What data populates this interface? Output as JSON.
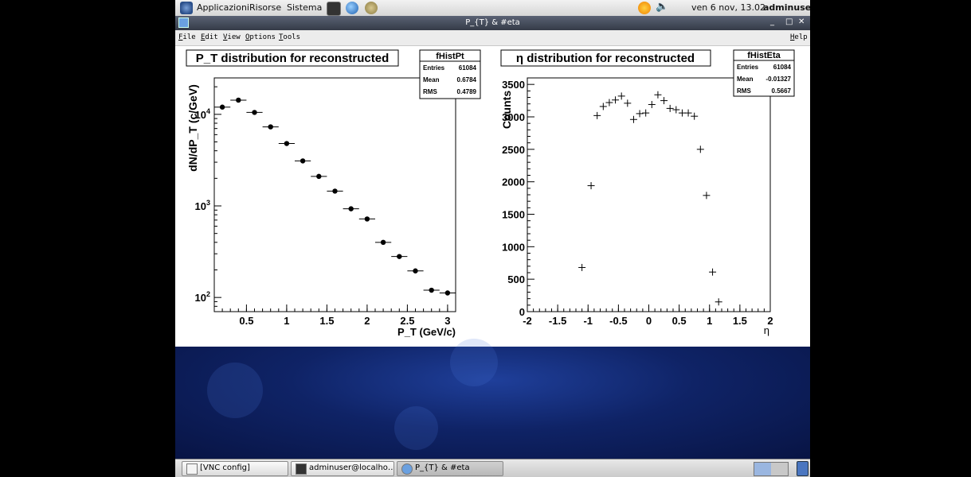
{
  "topbar": {
    "menus": [
      "Applicazioni",
      "Risorse",
      "Sistema"
    ],
    "clock": "ven  6 nov, 13.02",
    "user": "adminuser"
  },
  "window": {
    "title": "P_{T} & #eta",
    "buttons": {
      "minimize": "_",
      "maximize": "□",
      "close": "✕"
    }
  },
  "menubar": {
    "items": [
      "File",
      "Edit",
      "View",
      "Options",
      "Tools"
    ],
    "help": "Help"
  },
  "chart_data": [
    {
      "type": "scatter",
      "title": "P_T distribution for reconstructed",
      "xlabel": "P_T (GeV/c)",
      "ylabel": "dN/dP_T (c/GeV)",
      "yscale": "log",
      "xlim": [
        0.1,
        3.1
      ],
      "ylim": [
        70,
        25000
      ],
      "x_ticks": [
        "0.5",
        "1",
        "1.5",
        "2",
        "2.5",
        "3"
      ],
      "y_ticks": [
        "10^2",
        "10^3",
        "10^4"
      ],
      "x": [
        0.2,
        0.4,
        0.6,
        0.8,
        1.0,
        1.2,
        1.4,
        1.6,
        1.8,
        2.0,
        2.2,
        2.4,
        2.6,
        2.8,
        3.0
      ],
      "y": [
        12000,
        14300,
        10500,
        7300,
        4800,
        3100,
        2100,
        1450,
        930,
        720,
        400,
        280,
        195,
        120,
        112
      ],
      "marker": "filled-circle",
      "stats": {
        "name": "fHistPt",
        "rows": [
          {
            "label": "Entries",
            "value": "61084"
          },
          {
            "label": "Mean",
            "value": "0.6784"
          },
          {
            "label": "RMS",
            "value": "0.4789"
          }
        ]
      }
    },
    {
      "type": "scatter",
      "title": "η distribution for reconstructed",
      "xlabel": "η",
      "ylabel": "Counts",
      "xlim": [
        -2,
        2
      ],
      "ylim": [
        0,
        3600
      ],
      "x_ticks": [
        "-2",
        "-1.5",
        "-1",
        "-0.5",
        "0",
        "0.5",
        "1",
        "1.5",
        "2"
      ],
      "y_ticks": [
        "0",
        "500",
        "1000",
        "1500",
        "2000",
        "2500",
        "3000",
        "3500"
      ],
      "x": [
        -1.1,
        -0.95,
        -0.85,
        -0.75,
        -0.65,
        -0.55,
        -0.45,
        -0.35,
        -0.25,
        -0.15,
        -0.05,
        0.05,
        0.15,
        0.25,
        0.35,
        0.45,
        0.55,
        0.65,
        0.75,
        0.85,
        0.95,
        1.05,
        1.15
      ],
      "y": [
        680,
        1940,
        3020,
        3160,
        3220,
        3260,
        3320,
        3210,
        2960,
        3050,
        3060,
        3190,
        3340,
        3250,
        3130,
        3110,
        3060,
        3060,
        3010,
        2500,
        1790,
        610,
        150
      ],
      "marker": "cross",
      "stats": {
        "name": "fHistEta",
        "rows": [
          {
            "label": "Entries",
            "value": "61084"
          },
          {
            "label": "Mean",
            "value": "-0.01327"
          },
          {
            "label": "RMS",
            "value": "0.5667"
          }
        ]
      }
    }
  ],
  "taskbar": {
    "tasks": [
      "[VNC config]",
      "adminuser@localho…",
      "P_{T} & #eta"
    ]
  },
  "colors": {
    "titlebar": "#3f4654",
    "desktop": "#0f2366",
    "marker": "#000000"
  }
}
